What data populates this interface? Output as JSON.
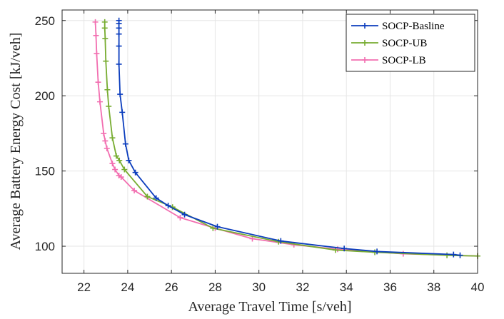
{
  "chart_data": {
    "type": "line",
    "title": "",
    "xlabel": "Average Travel Time [s/veh]",
    "ylabel": "Average Battery Energy Cost [kJ/veh]",
    "xlim": [
      21,
      40
    ],
    "ylim": [
      82,
      257
    ],
    "xticks": [
      22,
      24,
      26,
      28,
      30,
      32,
      34,
      36,
      38,
      40
    ],
    "yticks": [
      100,
      150,
      200,
      250
    ],
    "grid": true,
    "legend_position": "top-right",
    "marker": "+",
    "series": [
      {
        "name": "SOCP-Basline",
        "color": "#0b3dbd",
        "points": [
          [
            23.6,
            250
          ],
          [
            23.6,
            248
          ],
          [
            23.6,
            245
          ],
          [
            23.6,
            241
          ],
          [
            23.6,
            233
          ],
          [
            23.6,
            221
          ],
          [
            23.65,
            201
          ],
          [
            23.75,
            189
          ],
          [
            23.9,
            168
          ],
          [
            24.05,
            157
          ],
          [
            24.35,
            149
          ],
          [
            25.3,
            132
          ],
          [
            25.85,
            127
          ],
          [
            26.6,
            121
          ],
          [
            28.1,
            113
          ],
          [
            31.0,
            103.5
          ],
          [
            33.9,
            98.5
          ],
          [
            35.4,
            96.5
          ],
          [
            38.9,
            94.5
          ],
          [
            39.2,
            94
          ]
        ]
      },
      {
        "name": "SOCP-UB",
        "color": "#77ac30",
        "points": [
          [
            22.95,
            249
          ],
          [
            22.95,
            245
          ],
          [
            22.97,
            238
          ],
          [
            23.0,
            223
          ],
          [
            23.07,
            204
          ],
          [
            23.13,
            193
          ],
          [
            23.3,
            172
          ],
          [
            23.48,
            160
          ],
          [
            23.62,
            157
          ],
          [
            23.85,
            151
          ],
          [
            24.9,
            133
          ],
          [
            26.05,
            126
          ],
          [
            27.9,
            112
          ],
          [
            30.9,
            103
          ],
          [
            33.5,
            97.5
          ],
          [
            35.3,
            96
          ],
          [
            38.6,
            94
          ],
          [
            40.0,
            93.5
          ]
        ]
      },
      {
        "name": "SOCP-LB",
        "color": "#f26eb0",
        "points": [
          [
            22.52,
            249
          ],
          [
            22.55,
            240
          ],
          [
            22.58,
            228
          ],
          [
            22.65,
            209
          ],
          [
            22.73,
            196
          ],
          [
            22.9,
            175
          ],
          [
            22.97,
            170
          ],
          [
            23.05,
            165
          ],
          [
            23.3,
            155
          ],
          [
            23.42,
            151
          ],
          [
            23.6,
            147
          ],
          [
            23.7,
            146
          ],
          [
            24.3,
            137
          ],
          [
            26.4,
            119
          ],
          [
            28.0,
            112
          ],
          [
            29.7,
            105
          ],
          [
            31.6,
            101
          ],
          [
            33.6,
            98
          ],
          [
            36.6,
            95
          ],
          [
            40.0,
            93.5
          ]
        ]
      }
    ]
  }
}
